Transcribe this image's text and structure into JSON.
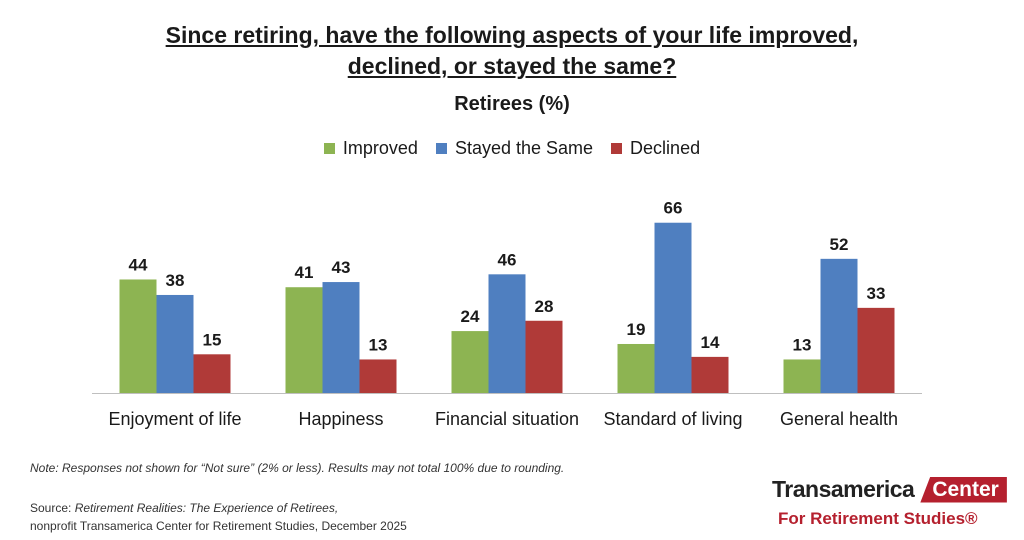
{
  "title_line1": "Since retiring, have the following aspects of your life improved,",
  "title_line2": "declined, or stayed the same?",
  "subtitle": "Retirees (%)",
  "colors": {
    "improved": "#8db452",
    "same": "#4f7fc0",
    "declined": "#b03a38"
  },
  "chart_data": {
    "type": "bar",
    "title": "Since retiring, have the following aspects of your life improved, declined, or stayed the same?",
    "subtitle": "Retirees (%)",
    "categories": [
      "Enjoyment of life",
      "Happiness",
      "Financial situation",
      "Standard of living",
      "General health"
    ],
    "series": [
      {
        "name": "Improved",
        "values": [
          44,
          41,
          24,
          19,
          13
        ]
      },
      {
        "name": "Stayed the Same",
        "values": [
          38,
          43,
          46,
          66,
          52
        ]
      },
      {
        "name": "Declined",
        "values": [
          15,
          13,
          28,
          14,
          33
        ]
      }
    ],
    "ylim": [
      0,
      70
    ],
    "grid": false,
    "legend_position": "top"
  },
  "note": "Note: Responses not shown for “Not sure” (2% or less). Results may not total 100% due to rounding.",
  "source_label": "Source: ",
  "source_title": "Retirement Realities: The Experience of Retirees,",
  "source_line2": "nonprofit Transamerica Center for Retirement Studies, December 2025",
  "logo": {
    "word": "Transamerica",
    "tag": "Center",
    "line2": "For Retirement Studies®"
  }
}
